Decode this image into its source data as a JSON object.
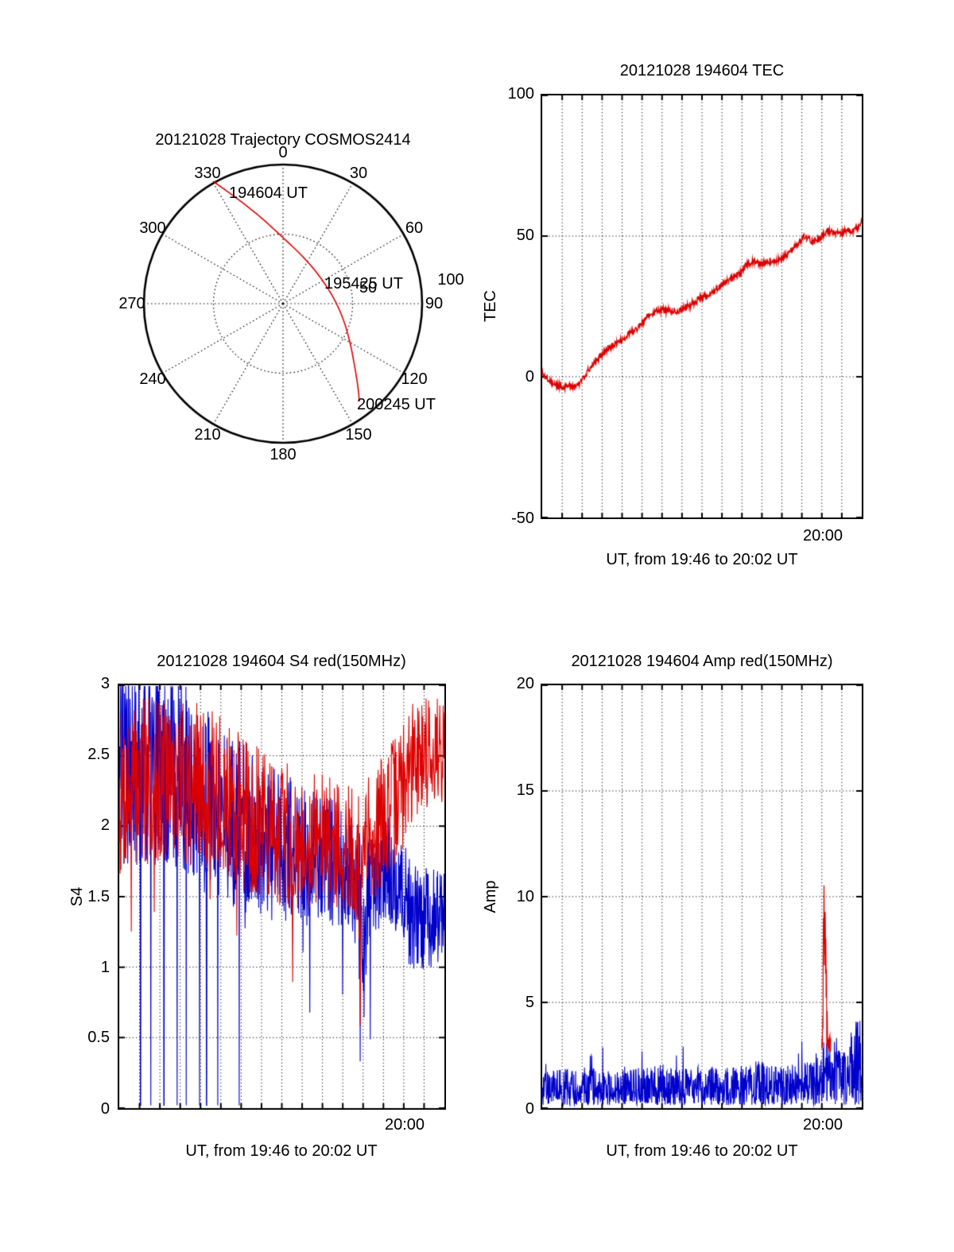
{
  "colors": {
    "red": "#dd0000",
    "blue": "#0000cc",
    "axis": "#000000",
    "background": "#ffffff"
  },
  "chart_data": [
    {
      "type": "polar-trajectory",
      "title": "20121028 Trajectory COSMOS2414",
      "azimuth_ticks_deg": [
        0,
        30,
        60,
        90,
        120,
        150,
        180,
        210,
        240,
        270,
        300,
        330
      ],
      "azimuth_labels": [
        "0",
        "30",
        "60",
        "90",
        "120",
        "150",
        "180",
        "210",
        "240",
        "270",
        "300",
        "330"
      ],
      "range_ring_labels": [
        "50",
        "100"
      ],
      "grid": "dotted spokes every 30 deg, dotted ring at half radius, solid outer circle",
      "annotations": [
        {
          "label": "194604 UT"
        },
        {
          "label": "195425 UT"
        },
        {
          "label": "200245 UT"
        }
      ],
      "track_color": "#dd0000",
      "track_points_norm": [
        [
          -0.503,
          -0.88
        ],
        [
          -0.406,
          -0.811
        ],
        [
          -0.291,
          -0.726
        ],
        [
          -0.149,
          -0.611
        ],
        [
          -0.006,
          -0.48
        ],
        [
          0.137,
          -0.343
        ],
        [
          0.251,
          -0.211
        ],
        [
          0.354,
          -0.057
        ],
        [
          0.429,
          0.103
        ],
        [
          0.48,
          0.274
        ],
        [
          0.514,
          0.446
        ],
        [
          0.537,
          0.589
        ],
        [
          0.549,
          0.703
        ]
      ]
    },
    {
      "type": "line",
      "title": "20121028 194604 TEC",
      "ylabel": "TEC",
      "xlabel": "UT, from 19:46 to 20:02 UT",
      "ylim": [
        -50,
        100
      ],
      "yticks": [
        100,
        50,
        0,
        -50
      ],
      "grid_y": [
        50,
        0
      ],
      "x_span_minutes": 16,
      "x_start": "19:46",
      "x_end": "20:02",
      "x_tick_label": "20:00",
      "x_tick_minute": 14,
      "series": [
        {
          "name": "TEC",
          "color": "#dd0000",
          "seed": 3,
          "keypoints": [
            [
              0,
              1
            ],
            [
              0.3,
              -1
            ],
            [
              0.7,
              -3
            ],
            [
              1,
              -4
            ],
            [
              1.3,
              -3
            ],
            [
              1.6,
              -4
            ],
            [
              2,
              -1
            ],
            [
              2.3,
              2
            ],
            [
              2.7,
              6
            ],
            [
              3,
              8
            ],
            [
              3.3,
              10
            ],
            [
              3.7,
              12
            ],
            [
              4,
              13
            ],
            [
              4.3,
              15
            ],
            [
              4.7,
              17
            ],
            [
              5,
              19
            ],
            [
              5.3,
              22
            ],
            [
              5.6,
              23
            ],
            [
              6,
              24
            ],
            [
              6.3,
              23.5
            ],
            [
              6.7,
              23
            ],
            [
              7,
              24
            ],
            [
              7.3,
              25
            ],
            [
              7.7,
              27
            ],
            [
              8,
              28
            ],
            [
              8.3,
              29
            ],
            [
              8.7,
              31
            ],
            [
              9,
              33
            ],
            [
              9.3,
              34
            ],
            [
              9.7,
              36
            ],
            [
              10,
              38
            ],
            [
              10.3,
              40
            ],
            [
              10.6,
              41
            ],
            [
              11,
              40
            ],
            [
              11.3,
              41
            ],
            [
              11.7,
              41
            ],
            [
              12,
              42
            ],
            [
              12.3,
              44
            ],
            [
              12.6,
              46
            ],
            [
              12.9,
              48
            ],
            [
              13.1,
              50
            ],
            [
              13.3,
              49
            ],
            [
              13.5,
              48
            ],
            [
              13.8,
              49
            ],
            [
              14,
              50
            ],
            [
              14.3,
              52
            ],
            [
              14.6,
              51
            ],
            [
              15,
              51
            ],
            [
              15.3,
              52
            ],
            [
              15.6,
              52
            ],
            [
              15.8,
              53
            ],
            [
              15.95,
              55
            ],
            [
              16,
              57
            ]
          ]
        }
      ]
    },
    {
      "type": "noisy-line",
      "title": "20121028 194604 S4 red(150MHz)",
      "ylabel": "S4",
      "xlabel": "UT, from 19:46 to 20:02 UT",
      "ylim": [
        0,
        3
      ],
      "yticks": [
        3,
        2.5,
        2,
        1.5,
        1,
        0.5,
        0
      ],
      "grid_y": [
        2.5,
        2,
        1.5,
        1,
        0.5
      ],
      "x_span_minutes": 16,
      "x_start": "19:46",
      "x_end": "20:02",
      "x_tick_label": "20:00",
      "x_tick_minute": 14,
      "series": [
        {
          "name": "S4 blue",
          "color": "#0000cc",
          "seed": 42,
          "samples": 1000,
          "mean": [
            [
              0,
              2.45
            ],
            [
              1.5,
              2.45
            ],
            [
              3,
              2.35
            ],
            [
              4,
              2.2
            ],
            [
              5,
              2.1
            ],
            [
              6,
              2
            ],
            [
              7,
              1.9
            ],
            [
              8,
              1.85
            ],
            [
              9,
              1.8
            ],
            [
              10,
              1.75
            ],
            [
              11,
              1.7
            ],
            [
              11.9,
              1.55
            ],
            [
              12.05,
              1
            ],
            [
              12.2,
              1.6
            ],
            [
              13,
              1.7
            ],
            [
              13.8,
              1.6
            ],
            [
              14.2,
              1.4
            ],
            [
              14.6,
              1.35
            ],
            [
              16,
              1.35
            ]
          ],
          "amp": [
            [
              0,
              0.75
            ],
            [
              3,
              0.7
            ],
            [
              6,
              0.6
            ],
            [
              9,
              0.5
            ],
            [
              12,
              0.45
            ],
            [
              14,
              0.4
            ],
            [
              16,
              0.33
            ]
          ],
          "zero_drop_minutes": [
            1.05,
            1.55,
            2.2,
            2.85,
            3.3,
            3.95,
            4.3,
            4.85,
            5.9
          ]
        },
        {
          "name": "S4 red 150MHz",
          "color": "#dd0000",
          "seed": 7,
          "samples": 780,
          "mean": [
            [
              0,
              2.2
            ],
            [
              1,
              2.3
            ],
            [
              2,
              2.35
            ],
            [
              3.5,
              2.3
            ],
            [
              5,
              2.2
            ],
            [
              6,
              2.1
            ],
            [
              7,
              2
            ],
            [
              8,
              1.95
            ],
            [
              9,
              1.9
            ],
            [
              10,
              1.9
            ],
            [
              11,
              1.85
            ],
            [
              11.78,
              1.8
            ],
            [
              11.86,
              0.55
            ],
            [
              11.94,
              1.8
            ],
            [
              13,
              2.05
            ],
            [
              14,
              2.3
            ],
            [
              14.6,
              2.5
            ],
            [
              15.2,
              2.55
            ],
            [
              16,
              2.55
            ]
          ],
          "amp": [
            [
              0,
              0.6
            ],
            [
              4,
              0.6
            ],
            [
              8,
              0.52
            ],
            [
              11,
              0.45
            ],
            [
              12,
              0.5
            ],
            [
              14,
              0.45
            ],
            [
              16,
              0.38
            ]
          ]
        }
      ]
    },
    {
      "type": "noisy-line",
      "title": "20121028 194604 Amp red(150MHz)",
      "ylabel": "Amp",
      "xlabel": "UT, from 19:46 to 20:02 UT",
      "ylim": [
        0,
        20
      ],
      "yticks": [
        20,
        15,
        10,
        5,
        0
      ],
      "grid_y": [
        15,
        10,
        5
      ],
      "x_span_minutes": 16,
      "x_start": "19:46",
      "x_end": "20:02",
      "x_tick_label": "20:00",
      "x_tick_minute": 14,
      "series": [
        {
          "name": "Amp blue",
          "color": "#0000cc",
          "seed": 99,
          "samples": 1050,
          "top_keypoints": [
            [
              0,
              1.7
            ],
            [
              1,
              1.9
            ],
            [
              2,
              1.8
            ],
            [
              2.5,
              2.7
            ],
            [
              2.7,
              1.9
            ],
            [
              3.5,
              1.8
            ],
            [
              4.5,
              1.9
            ],
            [
              5.6,
              1.9
            ],
            [
              5.85,
              2.9
            ],
            [
              6.1,
              1.9
            ],
            [
              7,
              1.9
            ],
            [
              8,
              2
            ],
            [
              9,
              1.9
            ],
            [
              10,
              2
            ],
            [
              10.8,
              2.3
            ],
            [
              11.5,
              2
            ],
            [
              12.5,
              2.1
            ],
            [
              13.5,
              2.2
            ],
            [
              14,
              2.6
            ],
            [
              14.2,
              3.8
            ],
            [
              14.6,
              3.4
            ],
            [
              15,
              3.2
            ],
            [
              15.4,
              3.6
            ],
            [
              15.8,
              4.6
            ],
            [
              16,
              3.8
            ]
          ]
        },
        {
          "name": "Amp red 150MHz",
          "color": "#dd0000",
          "seed": 5,
          "base": 2.6,
          "window_minutes": [
            14.0,
            14.45
          ],
          "spikes": [
            [
              14.05,
              4.5
            ],
            [
              14.08,
              9.3
            ],
            [
              14.11,
              10.9
            ],
            [
              14.14,
              8.8
            ],
            [
              14.17,
              9.6
            ],
            [
              14.2,
              8.3
            ],
            [
              14.23,
              6.8
            ],
            [
              14.27,
              4.6
            ],
            [
              14.32,
              3.4
            ],
            [
              14.4,
              2.9
            ]
          ]
        }
      ]
    }
  ]
}
